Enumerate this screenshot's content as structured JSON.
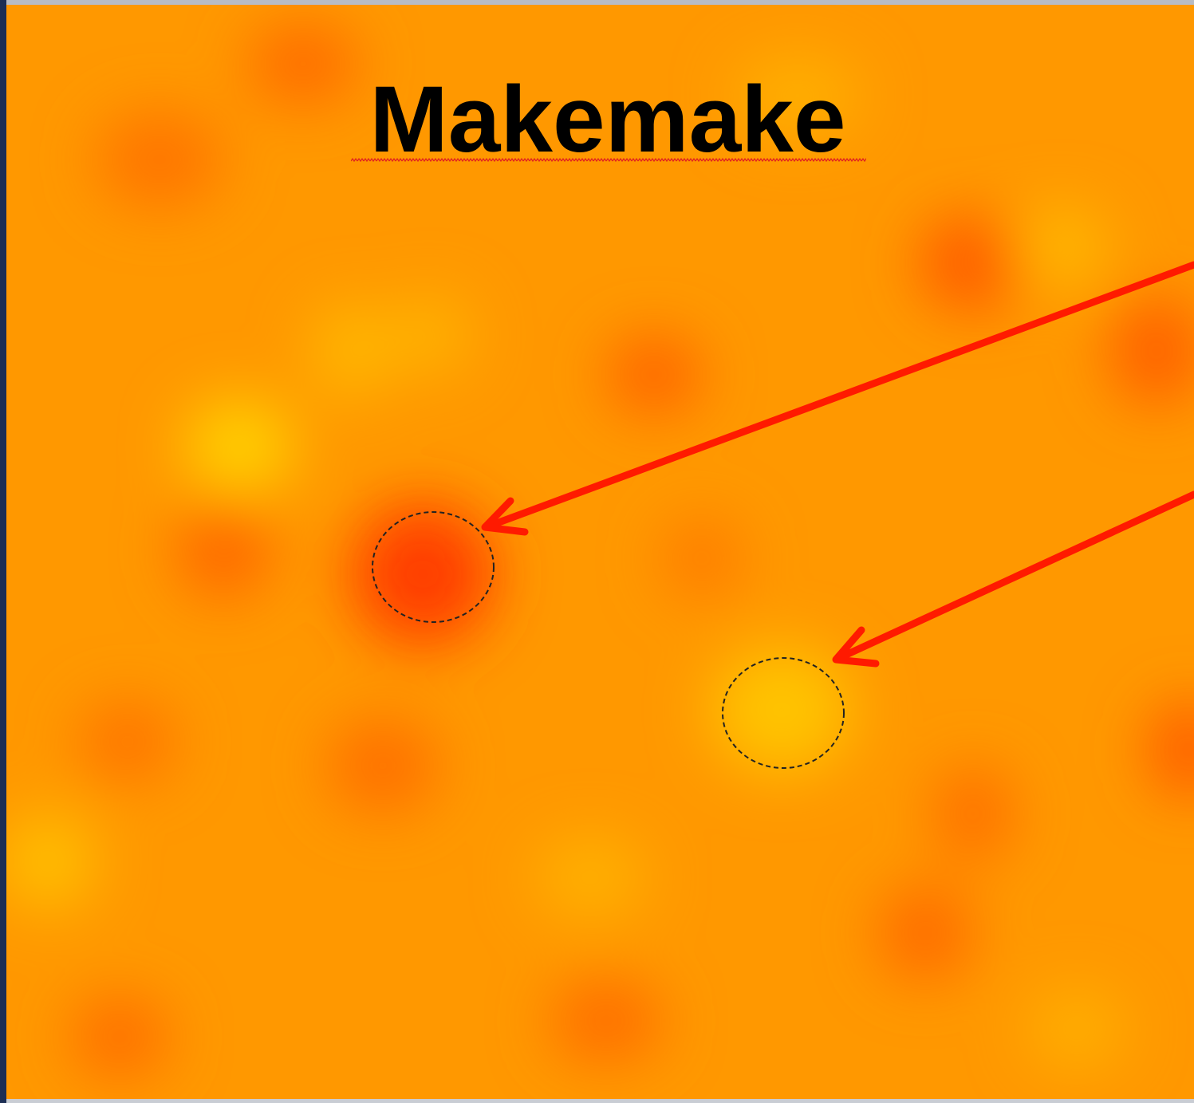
{
  "slide": {
    "title": "Makemake"
  }
}
